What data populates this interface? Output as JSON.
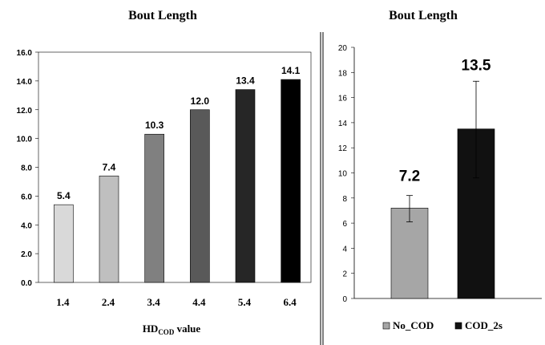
{
  "chart_data": [
    {
      "type": "bar",
      "title": "Bout Length",
      "xlabel_main": "HD",
      "xlabel_sub": "COD",
      "xlabel_suffix": " value",
      "ylabel": "",
      "ylim": [
        0,
        16
      ],
      "yticks": [
        "0.0",
        "2.0",
        "4.0",
        "6.0",
        "8.0",
        "10.0",
        "12.0",
        "14.0",
        "16.0"
      ],
      "categories": [
        "1.4",
        "2.4",
        "3.4",
        "4.4",
        "5.4",
        "6.4"
      ],
      "values": [
        5.4,
        7.4,
        10.3,
        12.0,
        13.4,
        14.1
      ],
      "value_labels": [
        "5.4",
        "7.4",
        "10.3",
        "12.0",
        "13.4",
        "14.1"
      ],
      "colors": [
        "#d9d9d9",
        "#bfbfbf",
        "#808080",
        "#595959",
        "#262626",
        "#000000"
      ]
    },
    {
      "type": "bar",
      "title": "Bout Length",
      "ylim": [
        0,
        20
      ],
      "yticks": [
        "0",
        "2",
        "4",
        "6",
        "8",
        "10",
        "12",
        "14",
        "16",
        "18",
        "20"
      ],
      "series": [
        {
          "name": "No_COD",
          "value": 7.2,
          "label": "7.2",
          "err_low": 6.1,
          "err_high": 8.2,
          "color": "#a6a6a6"
        },
        {
          "name": "COD_2s",
          "value": 13.5,
          "label": "13.5",
          "err_low": 9.6,
          "err_high": 17.3,
          "color": "#111111"
        }
      ],
      "legend": "bottom"
    }
  ]
}
